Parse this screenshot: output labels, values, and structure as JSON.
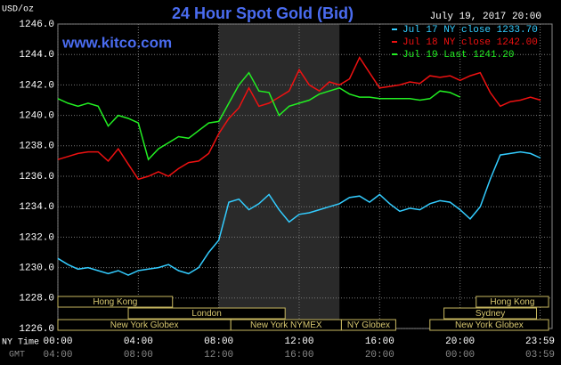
{
  "chart_data": {
    "type": "line",
    "title": "24 Hour Spot Gold (Bid)",
    "subtitle": "July 19, 2017 20:00",
    "watermark": "www.kitco.com",
    "y_label": "USD/oz",
    "x_label": "NY Time",
    "x2_label": "GMT",
    "x": [
      0,
      0.5,
      1,
      1.5,
      2,
      2.5,
      3,
      3.5,
      4,
      4.5,
      5,
      5.5,
      6,
      6.5,
      7,
      7.5,
      8,
      8.5,
      9,
      9.5,
      10,
      10.5,
      11,
      11.5,
      12,
      12.5,
      13,
      13.5,
      14,
      14.5,
      15,
      15.5,
      16,
      16.5,
      17,
      17.5,
      18,
      18.5,
      19,
      19.5,
      20,
      20.5,
      21,
      21.5,
      22,
      22.5,
      23,
      23.5,
      24
    ],
    "series": [
      {
        "name": "Jul 17 NY close 1233.70",
        "color": "#33ccff",
        "values": [
          1230.6,
          1230.2,
          1229.9,
          1230.0,
          1229.8,
          1229.6,
          1229.8,
          1229.5,
          1229.8,
          1229.9,
          1230.0,
          1230.2,
          1229.8,
          1229.6,
          1230.0,
          1231.0,
          1231.8,
          1234.3,
          1234.5,
          1233.8,
          1234.2,
          1234.8,
          1233.8,
          1233.0,
          1233.5,
          1233.6,
          1233.8,
          1234.0,
          1234.2,
          1234.6,
          1234.7,
          1234.3,
          1234.8,
          1234.2,
          1233.7,
          1233.9,
          1233.8,
          1234.2,
          1234.4,
          1234.3,
          1233.8,
          1233.2,
          1234.0,
          1235.8,
          1237.4,
          1237.5,
          1237.6,
          1237.5,
          1237.2
        ]
      },
      {
        "name": "Jul 18 NY close 1242.00",
        "color": "#ee1111",
        "values": [
          1237.1,
          1237.3,
          1237.5,
          1237.6,
          1237.6,
          1237.0,
          1237.8,
          1236.8,
          1235.8,
          1236.0,
          1236.3,
          1236.0,
          1236.5,
          1236.9,
          1237.0,
          1237.5,
          1238.8,
          1239.8,
          1240.5,
          1241.8,
          1240.6,
          1240.8,
          1241.2,
          1241.6,
          1243.0,
          1242.0,
          1241.6,
          1242.2,
          1242.0,
          1242.4,
          1243.8,
          1242.8,
          1241.8,
          1241.9,
          1242.0,
          1242.2,
          1242.1,
          1242.6,
          1242.5,
          1242.6,
          1242.3,
          1242.6,
          1242.8,
          1241.5,
          1240.6,
          1240.9,
          1241.0,
          1241.2,
          1241.0
        ]
      },
      {
        "name": "Jul 19 Last 1241.20",
        "color": "#22ee22",
        "values": [
          1241.1,
          1240.8,
          1240.6,
          1240.8,
          1240.6,
          1239.3,
          1240.0,
          1239.8,
          1239.5,
          1237.1,
          1237.8,
          1238.2,
          1238.6,
          1238.5,
          1239.0,
          1239.5,
          1239.6,
          1240.8,
          1242.0,
          1242.8,
          1241.6,
          1241.5,
          1240.0,
          1240.6,
          1240.8,
          1241.0,
          1241.4,
          1241.6,
          1241.8,
          1241.4,
          1241.2,
          1241.2,
          1241.1,
          1241.1,
          1241.1,
          1241.1,
          1241.0,
          1241.1,
          1241.6,
          1241.5,
          1241.2,
          null,
          null,
          null,
          null,
          null,
          null,
          null,
          null
        ]
      }
    ],
    "xlim": [
      0,
      24
    ],
    "xticks": [
      {
        "value": 0,
        "label": "00:00"
      },
      {
        "value": 4,
        "label": "04:00"
      },
      {
        "value": 8,
        "label": "08:00"
      },
      {
        "value": 12,
        "label": "12:00"
      },
      {
        "value": 16,
        "label": "16:00"
      },
      {
        "value": 20,
        "label": "20:00"
      },
      {
        "value": 23.98,
        "label": "23:59"
      }
    ],
    "x2ticks": [
      "04:00",
      "08:00",
      "12:00",
      "16:00",
      "20:00",
      "00:00",
      "03:59"
    ],
    "ylim": [
      1226,
      1246
    ],
    "yticks": [
      {
        "value": 1226,
        "label": "1226.0"
      },
      {
        "value": 1228,
        "label": "1228.0"
      },
      {
        "value": 1230,
        "label": "1230.0"
      },
      {
        "value": 1232,
        "label": "1232.0"
      },
      {
        "value": 1234,
        "label": "1234.0"
      },
      {
        "value": 1236,
        "label": "1236.0"
      },
      {
        "value": 1238,
        "label": "1238.0"
      },
      {
        "value": 1240,
        "label": "1240.0"
      },
      {
        "value": 1242,
        "label": "1242.0"
      },
      {
        "value": 1244,
        "label": "1244.0"
      },
      {
        "value": 1246,
        "label": "1246.0"
      }
    ],
    "sessions": [
      "Hong Kong",
      "London",
      "New York Globex",
      "New York NYMEX",
      "NY Globex",
      "Hong Kong",
      "Sydney",
      "New York Globex"
    ],
    "grid": true
  }
}
